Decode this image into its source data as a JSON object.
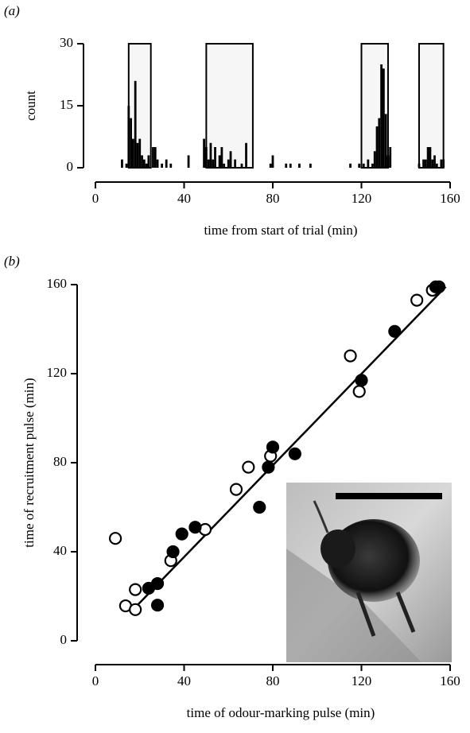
{
  "chart_data": [
    {
      "type": "bar",
      "panel_label": "(a)",
      "x_label": "time from start of trial (min)",
      "y_label": "count",
      "x": [
        12,
        14,
        15,
        16,
        17,
        18,
        19,
        20,
        21,
        22,
        23,
        24,
        26,
        27,
        28,
        30,
        32,
        34,
        42,
        49,
        50,
        51,
        52,
        53,
        54,
        56,
        57,
        58,
        60,
        61,
        63,
        66,
        68,
        79,
        80,
        86,
        88,
        92,
        97,
        115,
        119,
        121,
        123,
        125,
        126,
        127,
        128,
        129,
        130,
        131,
        132,
        133,
        146,
        148,
        149,
        150,
        151,
        152,
        153,
        154,
        156,
        157
      ],
      "values": [
        2,
        1,
        15,
        12,
        7,
        21,
        6,
        7,
        3,
        2,
        1,
        3,
        5,
        5,
        2,
        1,
        2,
        1,
        3,
        7,
        5,
        2,
        6,
        2,
        5,
        3,
        5,
        1,
        2,
        4,
        2,
        1,
        6,
        1,
        3,
        1,
        1,
        1,
        1,
        1,
        1,
        1,
        2,
        1,
        4,
        10,
        12,
        25,
        24,
        13,
        3,
        5,
        1,
        2,
        2,
        5,
        5,
        2,
        3,
        1,
        2,
        2
      ],
      "color": "#000000",
      "intervals": [
        [
          15,
          25
        ],
        [
          50,
          71
        ],
        [
          120,
          132
        ],
        [
          146,
          157
        ]
      ],
      "xlim": [
        0,
        160
      ],
      "xticks": [
        0,
        40,
        80,
        120,
        160
      ],
      "ylim": [
        0,
        30
      ],
      "yticks": [
        0,
        15,
        30
      ]
    },
    {
      "type": "scatter",
      "panel_label": "(b)",
      "x_label": "time of odour-marking pulse (min)",
      "y_label": "time of recruitment pulse (min)",
      "series": [
        {
          "color": "#000000",
          "filled": false,
          "x": [
            9,
            13.6,
            18,
            18,
            34,
            49.5,
            63.5,
            69,
            79,
            115,
            119,
            145,
            152
          ],
          "y": [
            46,
            15.7,
            14,
            23,
            36,
            50,
            68,
            78,
            83,
            128,
            112,
            153,
            157.5
          ]
        },
        {
          "color": "#000000",
          "filled": true,
          "x": [
            24,
            28,
            28,
            35,
            39,
            45,
            74,
            78,
            80,
            90,
            120,
            135,
            153.5,
            155
          ],
          "y": [
            23.6,
            25.7,
            16,
            40,
            48,
            51,
            60,
            78,
            87,
            84,
            117,
            139,
            159,
            159
          ]
        }
      ],
      "fit_line": {
        "x": [
          17,
          158
        ],
        "y": [
          14,
          159
        ]
      },
      "xlim": [
        0,
        160
      ],
      "xticks": [
        0,
        40,
        80,
        120,
        160
      ],
      "ylim": [
        0,
        160
      ],
      "yticks": [
        0,
        40,
        80,
        120,
        160
      ]
    }
  ]
}
